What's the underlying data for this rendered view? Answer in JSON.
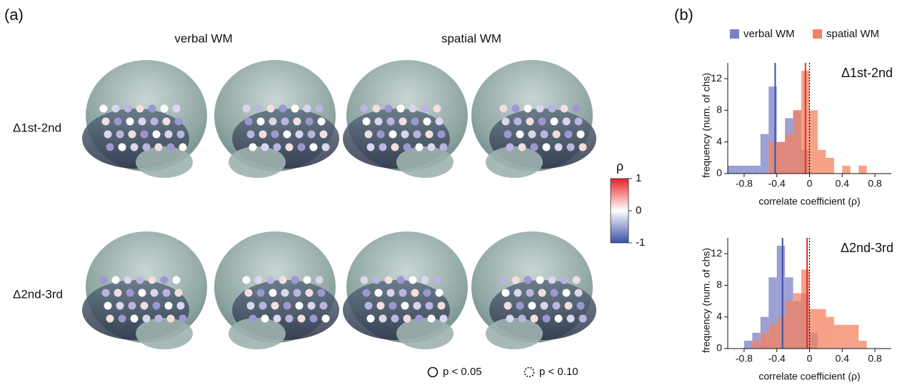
{
  "panel_a": {
    "label": "(a)",
    "columns": [
      "verbal WM",
      "spatial WM"
    ],
    "rows": [
      "Δ1st-2nd",
      "Δ2nd-3rd"
    ],
    "colorbar": {
      "label": "ρ",
      "lim": [
        -1,
        1
      ],
      "ticks": [
        1,
        0,
        -1
      ]
    },
    "legend": [
      "p < 0.05",
      "p < 0.10"
    ]
  },
  "panel_b_label": "(b)",
  "chart_data": [
    {
      "type": "histogram",
      "title": "Δ1st-2nd",
      "x_label": "correlate coefficient (ρ)",
      "y_label": "frequency (num. of chs)",
      "bins": [
        -1,
        -0.9,
        -0.8,
        -0.7,
        -0.6,
        -0.5,
        -0.4,
        -0.3,
        -0.2,
        -0.1,
        0,
        0.1,
        0.2,
        0.3,
        0.4,
        0.5,
        0.6,
        0.7,
        0.8,
        0.9,
        1
      ],
      "series": [
        {
          "name": "verbal WM",
          "color": "#7c80c6",
          "mean_color": "#3a4ea6",
          "mean": -0.42,
          "values": [
            1,
            1,
            1,
            1,
            5,
            11,
            4,
            7,
            8,
            3,
            0,
            0,
            0,
            0,
            0,
            0,
            0,
            0,
            0,
            0
          ]
        },
        {
          "name": "spatial WM",
          "color": "#f4825f",
          "mean_color": "#e02a2a",
          "mean": -0.05,
          "values": [
            0,
            0,
            0,
            0,
            0,
            4,
            4,
            5,
            8,
            13,
            8,
            3,
            2,
            0,
            1,
            0,
            1,
            0,
            0,
            0
          ]
        }
      ],
      "reference_line": 0,
      "xlim": [
        -1,
        1
      ],
      "xticks": [
        -0.8,
        -0.4,
        0,
        0.4,
        0.8
      ],
      "ylim": [
        0,
        14
      ],
      "yticks": [
        0,
        4,
        8,
        12
      ]
    },
    {
      "type": "histogram",
      "title": "Δ2nd-3rd",
      "x_label": "correlate coefficient (ρ)",
      "y_label": "frequency (num. of chs)",
      "bins": [
        -1,
        -0.9,
        -0.8,
        -0.7,
        -0.6,
        -0.5,
        -0.4,
        -0.3,
        -0.2,
        -0.1,
        0,
        0.1,
        0.2,
        0.3,
        0.4,
        0.5,
        0.6,
        0.7,
        0.8,
        0.9,
        1
      ],
      "series": [
        {
          "name": "verbal WM",
          "color": "#7c80c6",
          "mean_color": "#3a4ea6",
          "mean": -0.33,
          "values": [
            0,
            0,
            1,
            2,
            4,
            9,
            13,
            9,
            6,
            7,
            2,
            0,
            0,
            0,
            0,
            0,
            0,
            0,
            0,
            0
          ]
        },
        {
          "name": "spatial WM",
          "color": "#f4825f",
          "mean_color": "#e02a2a",
          "mean": -0.03,
          "values": [
            0,
            0,
            0,
            1,
            2,
            3,
            4,
            6,
            7,
            10,
            5,
            5,
            4,
            3,
            3,
            3,
            1,
            0,
            0,
            0
          ]
        }
      ],
      "reference_line": 0,
      "xlim": [
        -1,
        1
      ],
      "xticks": [
        -0.8,
        -0.4,
        0,
        0.4,
        0.8
      ],
      "ylim": [
        0,
        14
      ],
      "yticks": [
        0,
        4,
        8,
        12
      ]
    }
  ]
}
